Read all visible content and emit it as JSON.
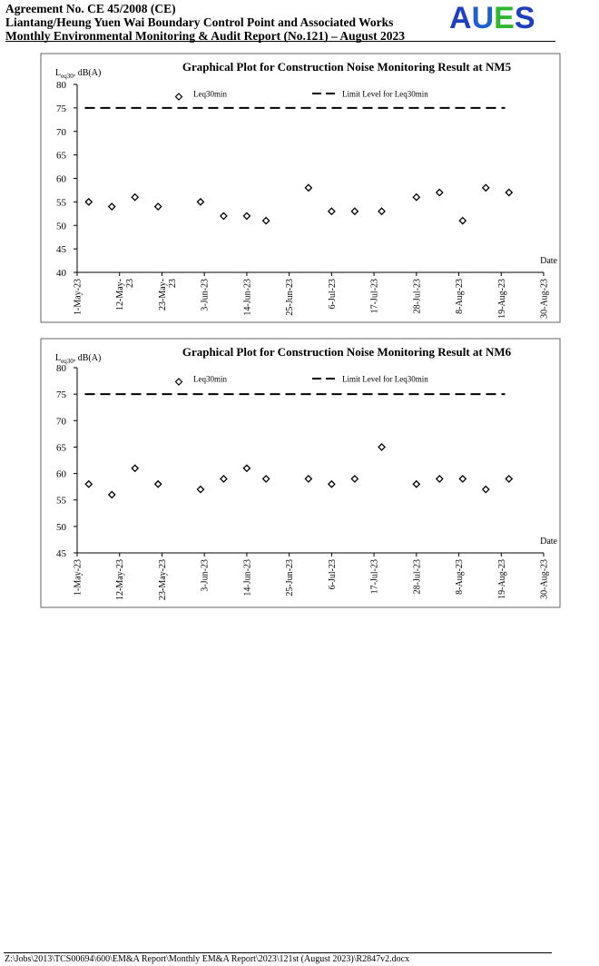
{
  "header": {
    "line1": "Agreement No. CE 45/2008 (CE)",
    "line2": "Liantang/Heung Yuen Wai Boundary Control Point and Associated Works",
    "line3": "Monthly Environmental Monitoring & Audit Report (No.121) – August 2023",
    "logo": {
      "a": "A",
      "u": "U",
      "e": "E",
      "s": "S"
    },
    "logo_colors": {
      "blue": "#1f3fbf",
      "green": "#2eb82e"
    }
  },
  "footer": {
    "path": "Z:\\Jobs\\2013\\TCS00694\\600\\EM&A Report\\Monthly EM&A Report\\2023\\121st (August 2023)\\R2847v2.docx"
  },
  "chart_data": [
    {
      "id": "nm5",
      "type": "scatter",
      "title": "Graphical Plot for Construction Noise Monitoring Result at NM5",
      "ylabel": "L",
      "ylabel_sub": "eq30",
      "ylabel_suffix": ", dB(A)",
      "xlabel": "Date",
      "ylim": [
        40,
        80
      ],
      "yticks": [
        40,
        45,
        50,
        55,
        60,
        65,
        70,
        75,
        80
      ],
      "xlim": [
        "2023-05-01",
        "2023-08-30"
      ],
      "xticks": [
        {
          "date": "2023-05-01",
          "lines": [
            "1-May-23"
          ]
        },
        {
          "date": "2023-05-12",
          "lines": [
            "12-May-",
            "23"
          ]
        },
        {
          "date": "2023-05-23",
          "lines": [
            "23-May-",
            "23"
          ]
        },
        {
          "date": "2023-06-03",
          "lines": [
            "3-Jun-23"
          ]
        },
        {
          "date": "2023-06-14",
          "lines": [
            "14-Jun-23"
          ]
        },
        {
          "date": "2023-06-25",
          "lines": [
            "25-Jun-23"
          ]
        },
        {
          "date": "2023-07-06",
          "lines": [
            "6-Jul-23"
          ]
        },
        {
          "date": "2023-07-17",
          "lines": [
            "17-Jul-23"
          ]
        },
        {
          "date": "2023-07-28",
          "lines": [
            "28-Jul-23"
          ]
        },
        {
          "date": "2023-08-08",
          "lines": [
            "8-Aug-23"
          ]
        },
        {
          "date": "2023-08-19",
          "lines": [
            "19-Aug-23"
          ]
        },
        {
          "date": "2023-08-30",
          "lines": [
            "30-Aug-23"
          ]
        }
      ],
      "legend": {
        "placement": "top",
        "points_label": "Leq30min",
        "limit_label": "Limit Level for Leq30min"
      },
      "limit": 75,
      "limit_range": [
        "2023-05-03",
        "2023-08-20"
      ],
      "points": [
        {
          "x": "2023-05-04",
          "y": 55
        },
        {
          "x": "2023-05-10",
          "y": 54
        },
        {
          "x": "2023-05-16",
          "y": 56
        },
        {
          "x": "2023-05-22",
          "y": 54
        },
        {
          "x": "2023-06-02",
          "y": 55
        },
        {
          "x": "2023-06-08",
          "y": 52
        },
        {
          "x": "2023-06-14",
          "y": 52
        },
        {
          "x": "2023-06-19",
          "y": 51
        },
        {
          "x": "2023-06-30",
          "y": 58
        },
        {
          "x": "2023-07-06",
          "y": 53
        },
        {
          "x": "2023-07-12",
          "y": 53
        },
        {
          "x": "2023-07-19",
          "y": 53
        },
        {
          "x": "2023-07-28",
          "y": 56
        },
        {
          "x": "2023-08-03",
          "y": 57
        },
        {
          "x": "2023-08-09",
          "y": 51
        },
        {
          "x": "2023-08-15",
          "y": 58
        },
        {
          "x": "2023-08-21",
          "y": 57
        }
      ]
    },
    {
      "id": "nm6",
      "type": "scatter",
      "title": "Graphical Plot for Construction Noise Monitoring Result at NM6",
      "ylabel": "L",
      "ylabel_sub": "eq30",
      "ylabel_suffix": ", dB(A)",
      "xlabel": "Date",
      "ylim": [
        45,
        80
      ],
      "yticks": [
        45,
        50,
        55,
        60,
        65,
        70,
        75,
        80
      ],
      "xlim": [
        "2023-05-01",
        "2023-08-30"
      ],
      "xticks": [
        {
          "date": "2023-05-01",
          "lines": [
            "1-May-23"
          ]
        },
        {
          "date": "2023-05-12",
          "lines": [
            "12-May-23"
          ]
        },
        {
          "date": "2023-05-23",
          "lines": [
            "23-May-23"
          ]
        },
        {
          "date": "2023-06-03",
          "lines": [
            "3-Jun-23"
          ]
        },
        {
          "date": "2023-06-14",
          "lines": [
            "14-Jun-23"
          ]
        },
        {
          "date": "2023-06-25",
          "lines": [
            "25-Jun-23"
          ]
        },
        {
          "date": "2023-07-06",
          "lines": [
            "6-Jul-23"
          ]
        },
        {
          "date": "2023-07-17",
          "lines": [
            "17-Jul-23"
          ]
        },
        {
          "date": "2023-07-28",
          "lines": [
            "28-Jul-23"
          ]
        },
        {
          "date": "2023-08-08",
          "lines": [
            "8-Aug-23"
          ]
        },
        {
          "date": "2023-08-19",
          "lines": [
            "19-Aug-23"
          ]
        },
        {
          "date": "2023-08-30",
          "lines": [
            "30-Aug-23"
          ]
        }
      ],
      "legend": {
        "placement": "top",
        "points_label": "Leq30min",
        "limit_label": "Limit Level for Leq30min"
      },
      "limit": 75,
      "limit_range": [
        "2023-05-03",
        "2023-08-20"
      ],
      "points": [
        {
          "x": "2023-05-04",
          "y": 58
        },
        {
          "x": "2023-05-10",
          "y": 56
        },
        {
          "x": "2023-05-16",
          "y": 61
        },
        {
          "x": "2023-05-22",
          "y": 58
        },
        {
          "x": "2023-06-02",
          "y": 57
        },
        {
          "x": "2023-06-08",
          "y": 59
        },
        {
          "x": "2023-06-14",
          "y": 61
        },
        {
          "x": "2023-06-19",
          "y": 59
        },
        {
          "x": "2023-06-30",
          "y": 59
        },
        {
          "x": "2023-07-06",
          "y": 58
        },
        {
          "x": "2023-07-12",
          "y": 59
        },
        {
          "x": "2023-07-19",
          "y": 65
        },
        {
          "x": "2023-08-03",
          "y": 59
        },
        {
          "x": "2023-07-28",
          "y": 58
        },
        {
          "x": "2023-08-09",
          "y": 59
        },
        {
          "x": "2023-08-15",
          "y": 57
        },
        {
          "x": "2023-08-21",
          "y": 59
        }
      ]
    }
  ]
}
